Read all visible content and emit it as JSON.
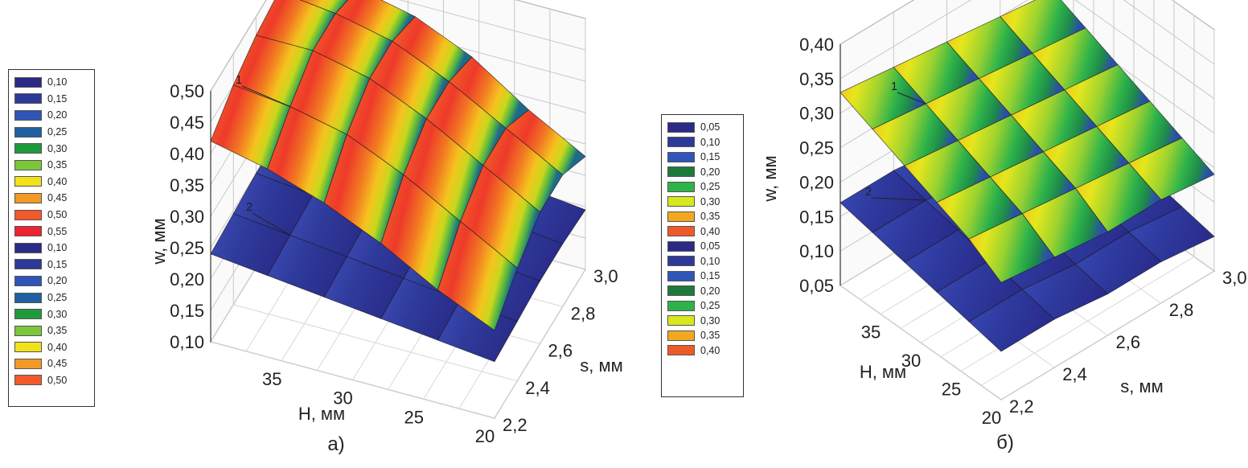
{
  "legend_a": {
    "entries": [
      {
        "label": "0,10",
        "color": "#2b2a86"
      },
      {
        "label": "0,15",
        "color": "#2e3a98"
      },
      {
        "label": "0,20",
        "color": "#2f55b8"
      },
      {
        "label": "0,25",
        "color": "#1f5fa2"
      },
      {
        "label": "0,30",
        "color": "#1e9a3c"
      },
      {
        "label": "0,35",
        "color": "#7cc63a"
      },
      {
        "label": "0,40",
        "color": "#f2e21b"
      },
      {
        "label": "0,45",
        "color": "#f29a26"
      },
      {
        "label": "0,50",
        "color": "#f25a2a"
      },
      {
        "label": "0,55",
        "color": "#ee2231"
      },
      {
        "label": "0,10",
        "color": "#2b2a86"
      },
      {
        "label": "0,15",
        "color": "#2e3a98"
      },
      {
        "label": "0,20",
        "color": "#2f55b8"
      },
      {
        "label": "0,25",
        "color": "#1f5fa2"
      },
      {
        "label": "0,30",
        "color": "#1e9a3c"
      },
      {
        "label": "0,35",
        "color": "#7cc63a"
      },
      {
        "label": "0,40",
        "color": "#f2e21b"
      },
      {
        "label": "0,45",
        "color": "#f29a26"
      },
      {
        "label": "0,50",
        "color": "#f25a2a"
      }
    ]
  },
  "legend_b": {
    "entries": [
      {
        "label": "0,05",
        "color": "#2b2a86"
      },
      {
        "label": "0,10",
        "color": "#2e3a98"
      },
      {
        "label": "0,15",
        "color": "#2f55b8"
      },
      {
        "label": "0,20",
        "color": "#1e7a3c"
      },
      {
        "label": "0,25",
        "color": "#2eb34a"
      },
      {
        "label": "0,30",
        "color": "#d8e81e"
      },
      {
        "label": "0,35",
        "color": "#f2a81e"
      },
      {
        "label": "0,40",
        "color": "#ee5a2a"
      },
      {
        "label": "0,05",
        "color": "#2b2a86"
      },
      {
        "label": "0,10",
        "color": "#2e3a98"
      },
      {
        "label": "0,15",
        "color": "#2f55b8"
      },
      {
        "label": "0,20",
        "color": "#1e7a3c"
      },
      {
        "label": "0,25",
        "color": "#2eb34a"
      },
      {
        "label": "0,30",
        "color": "#d8e81e"
      },
      {
        "label": "0,35",
        "color": "#f2a81e"
      },
      {
        "label": "0,40",
        "color": "#ee5a2a"
      }
    ]
  },
  "chart_data": [
    {
      "type": "surface3d",
      "panel_label": "а)",
      "zlabel": "w, мм",
      "xlabel": "H, мм",
      "ylabel": "s, мм",
      "z_ticks": [
        "0,10",
        "0,15",
        "0,20",
        "0,25",
        "0,30",
        "0,35",
        "0,40",
        "0,45",
        "0,50"
      ],
      "h_ticks": [
        "35",
        "30",
        "25",
        "20"
      ],
      "s_ticks": [
        "2,2",
        "2,4",
        "2,6",
        "2,8",
        "3,0"
      ],
      "zlim": [
        0.1,
        0.5
      ],
      "H_range": [
        20,
        40
      ],
      "s_range": [
        2.2,
        3.0
      ],
      "H": [
        40,
        36,
        32,
        28,
        24,
        20
      ],
      "s": [
        2.2,
        2.4,
        2.6,
        2.8,
        3.0
      ],
      "series": [
        {
          "name": "1",
          "values": [
            [
              0.42,
              0.45,
              0.47,
              0.48,
              0.46
            ],
            [
              0.4,
              0.44,
              0.47,
              0.47,
              0.45
            ],
            [
              0.37,
              0.42,
              0.45,
              0.45,
              0.43
            ],
            [
              0.33,
              0.38,
              0.41,
              0.41,
              0.39
            ],
            [
              0.28,
              0.33,
              0.36,
              0.36,
              0.33
            ],
            [
              0.24,
              0.28,
              0.31,
              0.31,
              0.28
            ]
          ]
        },
        {
          "name": "2",
          "values": [
            [
              0.24,
              0.245,
              0.25,
              0.25,
              0.245
            ],
            [
              0.23,
              0.235,
              0.24,
              0.24,
              0.235
            ],
            [
              0.22,
              0.225,
              0.23,
              0.23,
              0.225
            ],
            [
              0.21,
              0.215,
              0.22,
              0.22,
              0.215
            ],
            [
              0.2,
              0.205,
              0.21,
              0.21,
              0.205
            ],
            [
              0.19,
              0.195,
              0.2,
              0.2,
              0.195
            ]
          ]
        }
      ]
    },
    {
      "type": "surface3d",
      "panel_label": "б)",
      "zlabel": "w, мм",
      "xlabel": "H, мм",
      "ylabel": "s, мм",
      "z_ticks": [
        "0,05",
        "0,10",
        "0,15",
        "0,20",
        "0,25",
        "0,30",
        "0,35",
        "0,40"
      ],
      "h_ticks": [
        "35",
        "30",
        "25",
        "20"
      ],
      "s_ticks": [
        "2,2",
        "2,4",
        "2,6",
        "2,8",
        "3,0"
      ],
      "zlim": [
        0.05,
        0.4
      ],
      "H_range": [
        20,
        40
      ],
      "s_range": [
        2.2,
        3.0
      ],
      "H": [
        40,
        36,
        32,
        28,
        24,
        20
      ],
      "s": [
        2.2,
        2.4,
        2.6,
        2.8,
        3.0
      ],
      "series": [
        {
          "name": "1",
          "values": [
            [
              0.33,
              0.32,
              0.31,
              0.3,
              0.29
            ],
            [
              0.31,
              0.3,
              0.29,
              0.28,
              0.27
            ],
            [
              0.29,
              0.28,
              0.27,
              0.26,
              0.25
            ],
            [
              0.27,
              0.26,
              0.25,
              0.24,
              0.23
            ],
            [
              0.25,
              0.24,
              0.23,
              0.22,
              0.21
            ],
            [
              0.22,
              0.21,
              0.2,
              0.2,
              0.19
            ]
          ]
        },
        {
          "name": "2",
          "values": [
            [
              0.17,
              0.17,
              0.16,
              0.16,
              0.15
            ],
            [
              0.16,
              0.16,
              0.15,
              0.15,
              0.14
            ],
            [
              0.15,
              0.15,
              0.14,
              0.14,
              0.13
            ],
            [
              0.14,
              0.14,
              0.13,
              0.13,
              0.12
            ],
            [
              0.13,
              0.13,
              0.12,
              0.12,
              0.11
            ],
            [
              0.12,
              0.12,
              0.11,
              0.11,
              0.1
            ]
          ]
        }
      ]
    }
  ]
}
